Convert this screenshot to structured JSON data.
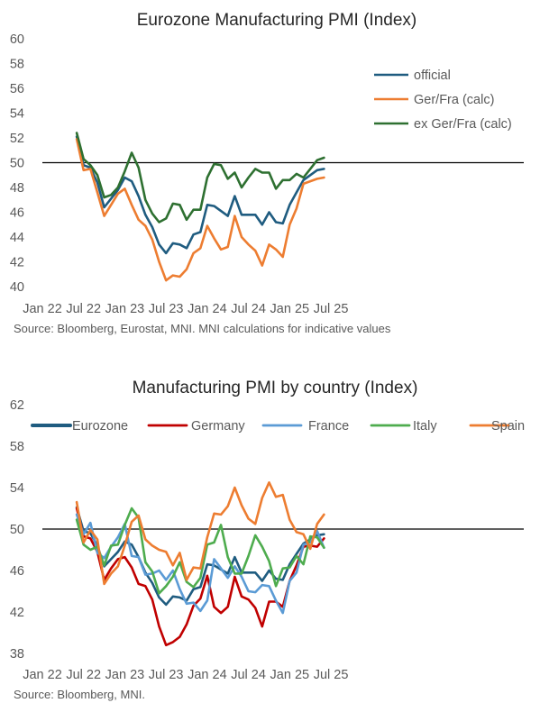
{
  "chart_data": [
    {
      "type": "line",
      "title": "Eurozone Manufacturing PMI (Index)",
      "source": "Source: Bloomberg, Eurostat, MNI.  MNI calculations for indicative values",
      "x_start": "2022-01",
      "xticks": [
        "Jan 22",
        "Jul 22",
        "Jan 23",
        "Jul 23",
        "Jan 24",
        "Jul 24",
        "Jan 25",
        "Jul 25"
      ],
      "ylim": [
        40,
        60
      ],
      "yticks": [
        40,
        42,
        44,
        46,
        48,
        50,
        52,
        54,
        56,
        58,
        60
      ],
      "reference_line": 50,
      "legend_position": "right",
      "series": [
        {
          "name": "official",
          "color": "#1f5c80",
          "start": "2022-06",
          "values": [
            52.1,
            49.8,
            49.6,
            48.4,
            46.4,
            47.1,
            47.8,
            48.8,
            48.5,
            47.3,
            45.8,
            44.8,
            43.4,
            42.7,
            43.5,
            43.4,
            43.1,
            44.2,
            44.4,
            46.6,
            46.5,
            46.1,
            45.7,
            47.3,
            45.8,
            45.8,
            45.8,
            45.0,
            46.0,
            45.2,
            45.1,
            46.6,
            47.6,
            48.6,
            49.0,
            49.4,
            49.5
          ]
        },
        {
          "name": "Ger/Fra (calc)",
          "color": "#ed7d31",
          "start": "2022-06",
          "values": [
            51.9,
            49.4,
            49.5,
            47.6,
            45.7,
            46.6,
            47.5,
            47.9,
            46.6,
            45.4,
            44.9,
            43.8,
            42.0,
            40.5,
            40.9,
            40.8,
            41.4,
            42.7,
            43.1,
            44.9,
            43.9,
            43.0,
            43.2,
            45.7,
            44.0,
            43.4,
            42.9,
            41.7,
            43.4,
            43.0,
            42.4,
            45.0,
            46.3,
            48.3,
            48.5,
            48.7,
            48.8
          ]
        },
        {
          "name": "ex Ger/Fra (calc)",
          "color": "#2e7031",
          "start": "2022-06",
          "values": [
            52.4,
            50.3,
            49.8,
            49.0,
            47.2,
            47.4,
            48.0,
            49.3,
            50.8,
            49.6,
            47.0,
            45.9,
            45.2,
            45.5,
            46.7,
            46.6,
            45.4,
            46.2,
            46.2,
            48.8,
            49.9,
            49.8,
            48.7,
            49.2,
            48.0,
            48.8,
            49.5,
            49.2,
            49.2,
            47.9,
            48.6,
            48.6,
            49.1,
            48.8,
            49.5,
            50.2,
            50.4
          ]
        }
      ]
    },
    {
      "type": "line",
      "title": "Manufacturing PMI by country (Index)",
      "source": "Source: Bloomberg, MNI.",
      "x_start": "2022-01",
      "xticks": [
        "Jan 22",
        "Jul 22",
        "Jan 23",
        "Jul 23",
        "Jan 24",
        "Jul 24",
        "Jan 25",
        "Jul 25"
      ],
      "ylim": [
        38,
        62
      ],
      "yticks": [
        38,
        42,
        46,
        50,
        54,
        58,
        62
      ],
      "reference_line": 50,
      "legend_position": "top",
      "series": [
        {
          "name": "Eurozone",
          "color": "#1f5c80",
          "start": "2022-06",
          "values": [
            52.1,
            49.8,
            49.6,
            48.4,
            46.4,
            47.1,
            47.8,
            48.8,
            48.5,
            47.3,
            45.8,
            44.8,
            43.4,
            42.7,
            43.5,
            43.4,
            43.1,
            44.2,
            44.4,
            46.6,
            46.5,
            46.1,
            45.7,
            47.3,
            45.8,
            45.8,
            45.8,
            45.0,
            46.0,
            45.2,
            45.1,
            46.6,
            47.6,
            48.6,
            49.0,
            49.4,
            49.5
          ]
        },
        {
          "name": "Germany",
          "color": "#c00000",
          "start": "2022-06",
          "values": [
            52.0,
            49.3,
            49.1,
            47.8,
            45.1,
            46.2,
            47.1,
            47.3,
            46.3,
            44.7,
            44.5,
            43.2,
            40.6,
            38.8,
            39.1,
            39.6,
            40.8,
            42.6,
            43.3,
            45.5,
            42.5,
            41.9,
            42.5,
            45.4,
            43.5,
            43.2,
            42.4,
            40.6,
            43.0,
            43.0,
            42.5,
            45.0,
            46.5,
            48.3,
            48.4,
            48.3,
            49.1
          ]
        },
        {
          "name": "France",
          "color": "#5b9bd5",
          "start": "2022-06",
          "values": [
            51.4,
            49.5,
            50.6,
            47.7,
            47.2,
            48.3,
            49.2,
            50.5,
            47.4,
            47.3,
            45.6,
            45.7,
            46.0,
            45.1,
            46.0,
            44.2,
            42.8,
            42.9,
            42.1,
            43.1,
            47.1,
            46.2,
            45.3,
            46.4,
            45.4,
            44.0,
            43.9,
            44.6,
            44.5,
            43.1,
            41.9,
            45.0,
            45.8,
            48.5,
            48.7,
            49.8,
            48.2
          ]
        },
        {
          "name": "Italy",
          "color": "#4eac4e",
          "start": "2022-06",
          "values": [
            50.9,
            48.5,
            48.0,
            48.3,
            46.5,
            48.4,
            48.5,
            50.4,
            52.0,
            51.1,
            46.8,
            45.9,
            43.8,
            44.5,
            45.4,
            46.8,
            44.9,
            44.4,
            45.3,
            48.5,
            48.7,
            50.4,
            47.3,
            45.7,
            45.7,
            47.4,
            49.4,
            48.3,
            46.9,
            44.5,
            46.2,
            46.3,
            47.4,
            46.6,
            49.3,
            49.2,
            48.2
          ]
        },
        {
          "name": "Spain",
          "color": "#ed7d31",
          "start": "2022-06",
          "values": [
            52.6,
            48.7,
            49.9,
            49.0,
            44.7,
            45.7,
            46.4,
            48.4,
            50.7,
            51.3,
            49.0,
            48.4,
            48.0,
            47.8,
            46.5,
            47.7,
            45.1,
            46.3,
            46.2,
            49.2,
            51.5,
            51.4,
            52.2,
            54.0,
            52.3,
            51.0,
            50.5,
            53.0,
            54.5,
            53.1,
            53.3,
            50.9,
            49.7,
            49.5,
            48.1,
            50.5,
            51.4
          ]
        }
      ]
    }
  ]
}
